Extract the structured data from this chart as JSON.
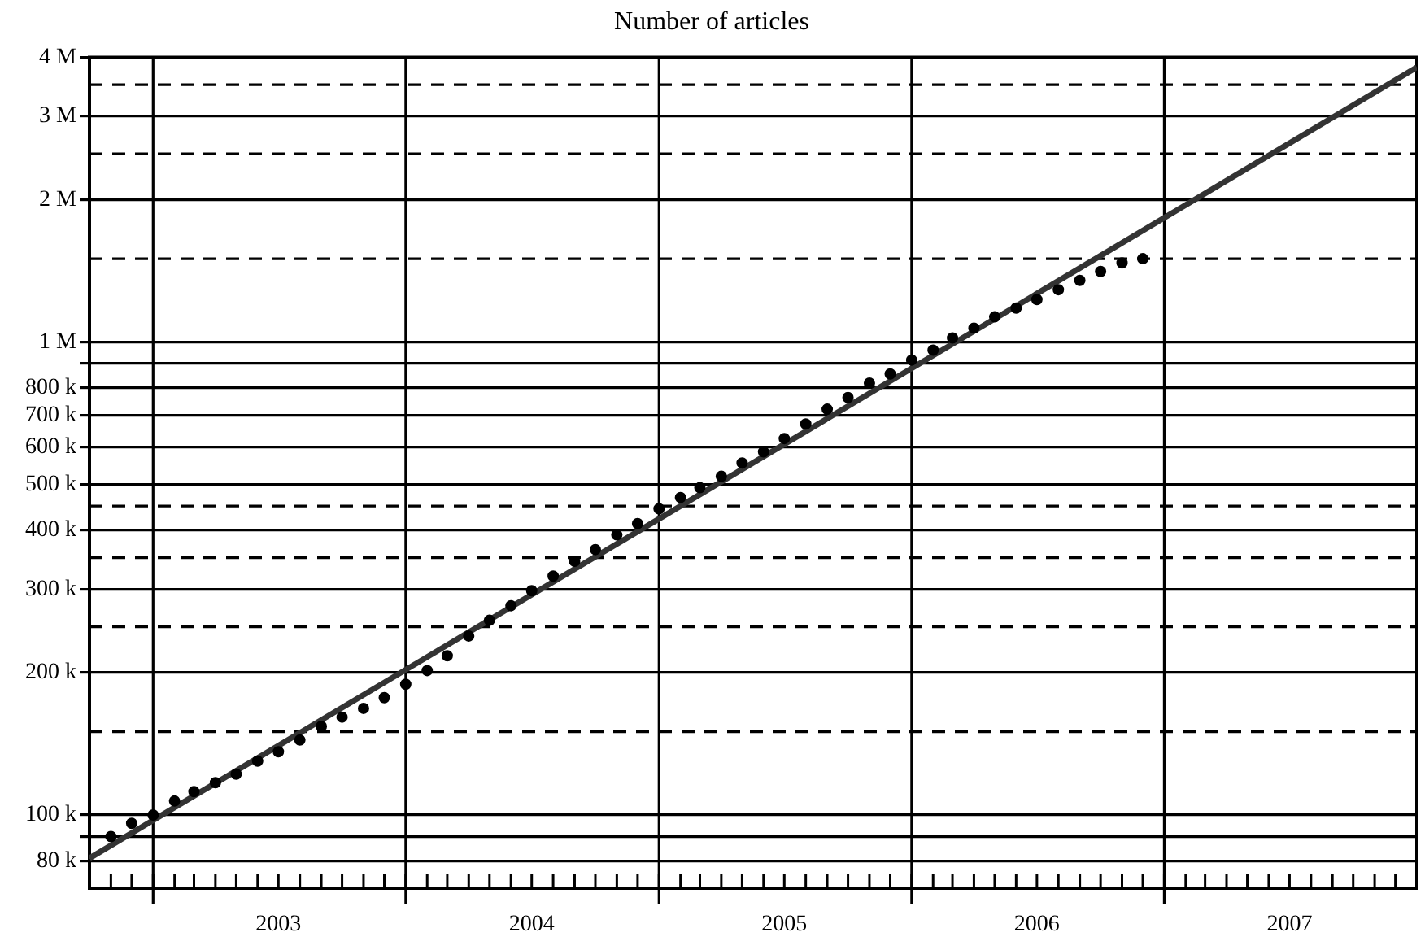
{
  "chart_data": {
    "type": "scatter",
    "title": "Number of articles",
    "log": "y",
    "grid": "y",
    "xlim": [
      "2002-10",
      "2008-01"
    ],
    "ylim": [
      70000,
      4000000
    ],
    "yticks": [
      {
        "value": 80000,
        "label": "80 k"
      },
      {
        "value": 90000,
        "label": null
      },
      {
        "value": 100000,
        "label": "100 k"
      },
      {
        "value": 200000,
        "label": "200 k"
      },
      {
        "value": 300000,
        "label": "300 k"
      },
      {
        "value": 400000,
        "label": "400 k"
      },
      {
        "value": 500000,
        "label": "500 k"
      },
      {
        "value": 600000,
        "label": "600 k"
      },
      {
        "value": 700000,
        "label": "700 k"
      },
      {
        "value": 800000,
        "label": "800 k"
      },
      {
        "value": 900000,
        "label": null
      },
      {
        "value": 1000000,
        "label": "1 M"
      },
      {
        "value": 2000000,
        "label": "2 M"
      },
      {
        "value": 3000000,
        "label": "3 M"
      },
      {
        "value": 4000000,
        "label": "4 M"
      }
    ],
    "xticks": [
      {
        "value": "2002-11",
        "label": null
      },
      {
        "value": "2002-12",
        "label": null
      },
      {
        "value": "2003-01",
        "label": null
      },
      {
        "value": "2003-02",
        "label": null
      },
      {
        "value": "2003-03",
        "label": null
      },
      {
        "value": "2003-04",
        "label": null
      },
      {
        "value": "2003-05",
        "label": null
      },
      {
        "value": "2003-06",
        "label": null
      },
      {
        "value": "2003-07",
        "label": "2003"
      },
      {
        "value": "2003-08",
        "label": null
      },
      {
        "value": "2003-09",
        "label": null
      },
      {
        "value": "2003-10",
        "label": null
      },
      {
        "value": "2003-11",
        "label": null
      },
      {
        "value": "2003-12",
        "label": null
      },
      {
        "value": "2004-01",
        "label": null
      },
      {
        "value": "2004-02",
        "label": null
      },
      {
        "value": "2004-03",
        "label": null
      },
      {
        "value": "2004-04",
        "label": null
      },
      {
        "value": "2004-05",
        "label": null
      },
      {
        "value": "2004-06",
        "label": null
      },
      {
        "value": "2004-07",
        "label": "2004"
      },
      {
        "value": "2004-08",
        "label": null
      },
      {
        "value": "2004-09",
        "label": null
      },
      {
        "value": "2004-10",
        "label": null
      },
      {
        "value": "2004-11",
        "label": null
      },
      {
        "value": "2004-12",
        "label": null
      },
      {
        "value": "2005-01",
        "label": null
      },
      {
        "value": "2005-02",
        "label": null
      },
      {
        "value": "2005-03",
        "label": null
      },
      {
        "value": "2005-04",
        "label": null
      },
      {
        "value": "2005-05",
        "label": null
      },
      {
        "value": "2005-06",
        "label": null
      },
      {
        "value": "2005-07",
        "label": "2005"
      },
      {
        "value": "2005-08",
        "label": null
      },
      {
        "value": "2005-09",
        "label": null
      },
      {
        "value": "2005-10",
        "label": null
      },
      {
        "value": "2005-11",
        "label": null
      },
      {
        "value": "2005-12",
        "label": null
      },
      {
        "value": "2006-01",
        "label": null
      },
      {
        "value": "2006-02",
        "label": null
      },
      {
        "value": "2006-03",
        "label": null
      },
      {
        "value": "2006-04",
        "label": null
      },
      {
        "value": "2006-05",
        "label": null
      },
      {
        "value": "2006-06",
        "label": null
      },
      {
        "value": "2006-07",
        "label": "2006"
      },
      {
        "value": "2006-08",
        "label": null
      },
      {
        "value": "2006-09",
        "label": null
      },
      {
        "value": "2006-10",
        "label": null
      },
      {
        "value": "2006-11",
        "label": null
      },
      {
        "value": "2006-12",
        "label": null
      },
      {
        "value": "2007-01",
        "label": null
      },
      {
        "value": "2007-02",
        "label": null
      },
      {
        "value": "2007-03",
        "label": null
      },
      {
        "value": "2007-04",
        "label": null
      },
      {
        "value": "2007-05",
        "label": null
      },
      {
        "value": "2007-06",
        "label": null
      },
      {
        "value": "2007-07",
        "label": "2007"
      },
      {
        "value": "2007-08",
        "label": null
      },
      {
        "value": "2007-09",
        "label": null
      },
      {
        "value": "2007-10",
        "label": null
      },
      {
        "value": "2007-11",
        "label": null
      },
      {
        "value": "2007-12",
        "label": null
      }
    ],
    "ref_lines": [
      {
        "axis": "x",
        "value": "2003-01",
        "color": "#000000",
        "line_style": "solid"
      },
      {
        "axis": "x",
        "value": "2004-01",
        "color": "#000000",
        "line_style": "solid"
      },
      {
        "axis": "x",
        "value": "2005-01",
        "color": "#000000",
        "line_style": "solid"
      },
      {
        "axis": "x",
        "value": "2006-01",
        "color": "#000000",
        "line_style": "solid"
      },
      {
        "axis": "x",
        "value": "2007-01",
        "color": "#000000",
        "line_style": "solid"
      },
      {
        "axis": "y",
        "value": 150000,
        "color": "#000000",
        "line_style": "dashed"
      },
      {
        "axis": "y",
        "value": 250000,
        "color": "#000000",
        "line_style": "dashed"
      },
      {
        "axis": "y",
        "value": 350000,
        "color": "#000000",
        "line_style": "dashed"
      },
      {
        "axis": "y",
        "value": 450000,
        "color": "#000000",
        "line_style": "dashed"
      },
      {
        "axis": "y",
        "value": 1500000,
        "color": "#000000",
        "line_style": "dashed"
      },
      {
        "axis": "y",
        "value": 2500000,
        "color": "#000000",
        "line_style": "dashed"
      },
      {
        "axis": "y",
        "value": 3500000,
        "color": "#000000",
        "line_style": "dashed"
      }
    ],
    "series": [
      {
        "color": "#000000",
        "marker": "circle",
        "x": [
          "2002-11",
          "2002-12",
          "2003-01",
          "2003-02",
          "2003-03",
          "2003-04",
          "2003-05",
          "2003-06",
          "2003-07",
          "2003-08",
          "2003-09",
          "2003-10",
          "2003-11",
          "2003-12",
          "2004-01",
          "2004-02",
          "2004-03",
          "2004-04",
          "2004-05",
          "2004-06",
          "2004-07",
          "2004-08",
          "2004-09",
          "2004-10",
          "2004-11",
          "2004-12",
          "2005-01",
          "2005-02",
          "2005-03",
          "2005-04",
          "2005-05",
          "2005-06",
          "2005-07",
          "2005-08",
          "2005-09",
          "2005-10",
          "2005-11",
          "2005-12",
          "2006-01",
          "2006-02",
          "2006-03",
          "2006-04",
          "2006-05",
          "2006-06",
          "2006-07",
          "2006-08",
          "2006-09",
          "2006-10",
          "2006-11",
          "2006-12"
        ],
        "values": [
          90000,
          96000,
          100000,
          107000,
          112000,
          117000,
          122000,
          130000,
          136000,
          144000,
          154000,
          161000,
          168000,
          177000,
          189000,
          202000,
          217000,
          239000,
          258000,
          277000,
          298000,
          320000,
          344000,
          364000,
          391000,
          413000,
          444000,
          469000,
          492000,
          520000,
          555000,
          586000,
          625000,
          671000,
          721000,
          763000,
          819000,
          856000,
          916000,
          961000,
          1020000,
          1070000,
          1130000,
          1180000,
          1230000,
          1290000,
          1350000,
          1410000,
          1470000,
          1500000
        ]
      },
      {
        "type": "line",
        "color": "#333333",
        "marker": "none",
        "line_style": "solid",
        "x": [
          "2002-10",
          "2008-01"
        ],
        "values": [
          81000,
          3810000
        ]
      }
    ]
  }
}
